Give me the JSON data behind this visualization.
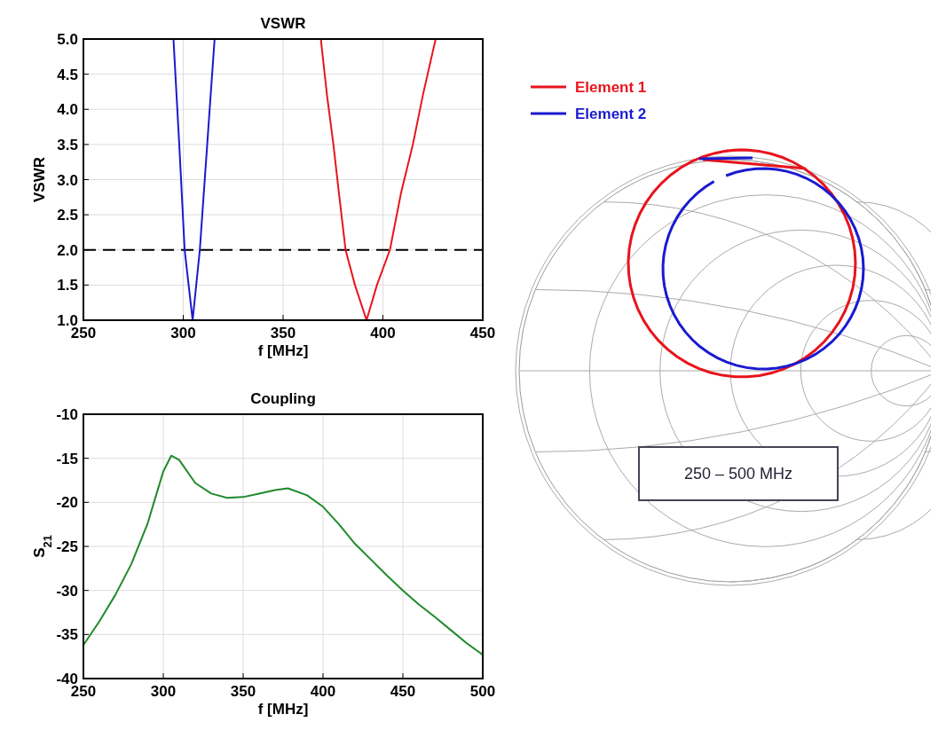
{
  "chart_data": [
    {
      "type": "line",
      "title": "VSWR",
      "xlabel": "f [MHz]",
      "ylabel": "VSWR",
      "xlim": [
        250,
        450
      ],
      "xticks": [
        250,
        300,
        350,
        400,
        450
      ],
      "ylim": [
        1,
        5
      ],
      "yticks": [
        {
          "value": 1,
          "label": "1.0"
        },
        1.5,
        {
          "value": 2,
          "label": "2.0"
        },
        2.5,
        {
          "value": 3,
          "label": "3.0"
        },
        3.5,
        {
          "value": 4,
          "label": "4.0"
        },
        4.5,
        {
          "value": 5,
          "label": "5.0"
        }
      ],
      "grid": true,
      "legend": "right",
      "ref_lines": [
        {
          "axis": "y",
          "value": 2,
          "color": "#000000",
          "line_style": "dashed"
        }
      ],
      "series": [
        {
          "name": "Element 1",
          "color": "#e8141c",
          "x": [
            368.9,
            372,
            375.2,
            378,
            381.3,
            386,
            391.8,
            397,
            403.5,
            409,
            415,
            420,
            426.4
          ],
          "values": [
            5,
            4.2,
            3.5,
            2.8,
            2,
            1.5,
            1,
            1.5,
            2,
            2.8,
            3.5,
            4.2,
            5
          ]
        },
        {
          "name": "Element 2",
          "color": "#1a1ad0",
          "x": [
            295.1,
            298,
            300.7,
            302.7,
            304.7,
            306.5,
            308.3,
            312,
            315.7
          ],
          "values": [
            5,
            3.5,
            2,
            1.5,
            1,
            1.5,
            2,
            3.5,
            5
          ]
        }
      ]
    },
    {
      "type": "line",
      "title": "Coupling",
      "xlabel": "f [MHz]",
      "ylabel": "S$_{21}$",
      "xlim": [
        250,
        500
      ],
      "xticks": [
        250,
        300,
        350,
        400,
        450,
        500
      ],
      "ylim": [
        -40,
        -10
      ],
      "yticks": [
        -40,
        -35,
        -30,
        -25,
        -20,
        -15,
        -10
      ],
      "grid": true,
      "series": [
        {
          "color": "#1f8a2a",
          "x": [
            250,
            260,
            270,
            280,
            290,
            295,
            300,
            305,
            310,
            320,
            330,
            340,
            350,
            360,
            370,
            378,
            390,
            400,
            410,
            420,
            430,
            440,
            450,
            460,
            470,
            480,
            490,
            500
          ],
          "values": [
            -36.2,
            -33.5,
            -30.5,
            -27,
            -22.5,
            -19.5,
            -16.5,
            -14.7,
            -15.2,
            -17.8,
            -19,
            -19.5,
            -19.4,
            -19,
            -18.6,
            -18.4,
            -19.2,
            -20.5,
            -22.5,
            -24.7,
            -26.5,
            -28.3,
            -30,
            -31.6,
            -33,
            -34.5,
            -36,
            -37.3
          ]
        }
      ]
    },
    {
      "type": "other",
      "annotations": [
        "250 – 500 MHz"
      ]
    }
  ]
}
